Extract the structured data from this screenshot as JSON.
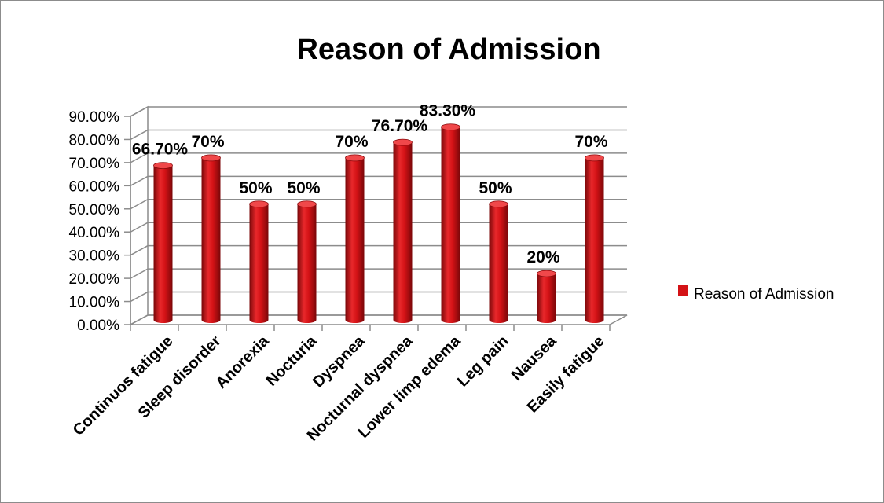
{
  "chart_data": {
    "type": "bar",
    "style": "3d-cylinder",
    "title": "Reason of Admission",
    "xlabel": "",
    "ylabel": "",
    "categories": [
      "Continuos fatigue",
      "Sleep disorder",
      "Anorexia",
      "Nocturia",
      "Dyspnea",
      "Nocturnal dyspnea",
      "Lower limp edema",
      "Leg pain",
      "Nausea",
      "Easily fatigue"
    ],
    "series": [
      {
        "name": "Reason of Admission",
        "values": [
          66.7,
          70,
          50,
          50,
          70,
          76.7,
          83.3,
          50,
          20,
          70
        ],
        "data_labels": [
          "66.70%",
          "70%",
          "50%",
          "50%",
          "70%",
          "76.70%",
          "83.30%",
          "50%",
          "20%",
          "70%"
        ],
        "color": "#d41216"
      }
    ],
    "ylim": [
      0,
      90
    ],
    "y_ticks": [
      "0.00%",
      "10.00%",
      "20.00%",
      "30.00%",
      "40.00%",
      "50.00%",
      "60.00%",
      "70.00%",
      "80.00%",
      "90.00%"
    ],
    "grid": true,
    "legend_position": "right"
  },
  "colors": {
    "bar": "#d41216",
    "bar_dark": "#8a0a0c",
    "bar_light": "#f0484a",
    "grid": "#8c8c8c",
    "frame": "#8c8c8c"
  }
}
